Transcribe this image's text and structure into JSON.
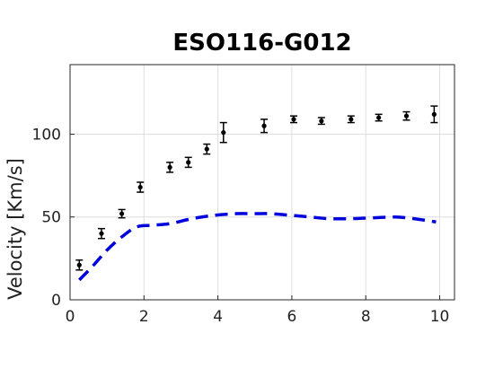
{
  "chart_data": {
    "type": "scatter",
    "title": "ESO116-G012",
    "xlabel": "",
    "ylabel": "Velocity  [Km/s]",
    "xlim": [
      0,
      10.4
    ],
    "ylim": [
      0,
      142
    ],
    "x_ticks": [
      0,
      2,
      4,
      6,
      8,
      10
    ],
    "y_ticks": [
      0,
      50,
      100
    ],
    "grid": true,
    "series": [
      {
        "type": "errorbar",
        "color": "#000000",
        "points": [
          {
            "x": 0.25,
            "y": 21,
            "err": 3
          },
          {
            "x": 0.85,
            "y": 40,
            "err": 3
          },
          {
            "x": 1.4,
            "y": 52,
            "err": 2.5
          },
          {
            "x": 1.9,
            "y": 68,
            "err": 3
          },
          {
            "x": 2.7,
            "y": 80,
            "err": 3
          },
          {
            "x": 3.2,
            "y": 83,
            "err": 3
          },
          {
            "x": 3.7,
            "y": 91,
            "err": 3
          },
          {
            "x": 4.15,
            "y": 101,
            "err": 6
          },
          {
            "x": 5.25,
            "y": 105,
            "err": 4
          },
          {
            "x": 6.05,
            "y": 109,
            "err": 2
          },
          {
            "x": 6.8,
            "y": 108,
            "err": 2
          },
          {
            "x": 7.6,
            "y": 109,
            "err": 2
          },
          {
            "x": 8.35,
            "y": 110,
            "err": 2
          },
          {
            "x": 9.1,
            "y": 111,
            "err": 2.5
          },
          {
            "x": 9.85,
            "y": 112,
            "err": 5
          }
        ]
      },
      {
        "type": "line",
        "style": "dashed",
        "color": "#0000dd",
        "x": [
          0.25,
          0.6,
          1.0,
          1.4,
          1.8,
          2.2,
          2.7,
          3.3,
          3.9,
          4.5,
          5.0,
          5.4,
          6.0,
          6.5,
          7.0,
          7.6,
          8.2,
          8.8,
          9.3,
          9.9
        ],
        "y": [
          12,
          20,
          30,
          38,
          44,
          45,
          46,
          49,
          51,
          52,
          52,
          52,
          51,
          50,
          49,
          49,
          49.5,
          50,
          49,
          47
        ]
      }
    ]
  }
}
